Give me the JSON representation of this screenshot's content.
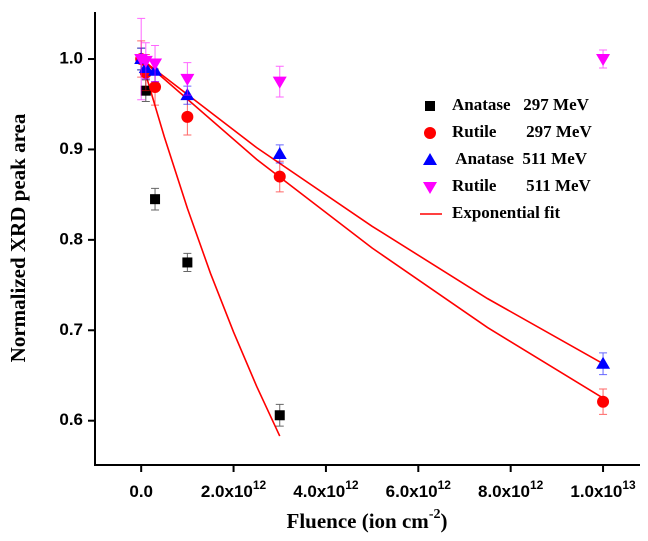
{
  "chart_data": {
    "type": "scatter",
    "x_label": {
      "text": "Fluence (ion cm",
      "superscript": "-2",
      "suffix": ")"
    },
    "y_label": "Normalized XRD peak area",
    "xlim": [
      -1000000000000.0,
      10800000000000.0
    ],
    "ylim": [
      0.551,
      1.052
    ],
    "xticks": [
      {
        "value": 0,
        "label": "0.0"
      },
      {
        "value": 2000000000000.0,
        "label": "2.0x10",
        "exponent": "12"
      },
      {
        "value": 4000000000000.0,
        "label": "4.0x10",
        "exponent": "12"
      },
      {
        "value": 6000000000000.0,
        "label": "6.0x10",
        "exponent": "12"
      },
      {
        "value": 8000000000000.0,
        "label": "8.0x10",
        "exponent": "12"
      },
      {
        "value": 10000000000000.0,
        "label": "1.0x10",
        "exponent": "13"
      }
    ],
    "yticks": [
      0.6,
      0.7,
      0.8,
      0.9,
      {
        "value": 1.0,
        "label": "1.0"
      }
    ],
    "series": [
      {
        "name": "Anatase   297 MeV",
        "color": "#000000",
        "marker": "square",
        "x": [
          0,
          100000000000.0,
          300000000000.0,
          1000000000000.0,
          3000000000000.0
        ],
        "values": [
          1.0,
          0.965,
          0.845,
          0.775,
          0.606
        ],
        "errors": [
          0.012,
          0.012,
          0.012,
          0.01,
          0.012
        ]
      },
      {
        "name": "Rutile       297 MeV",
        "color": "#ff0000",
        "marker": "circle",
        "x": [
          0,
          100000000000.0,
          300000000000.0,
          1000000000000.0,
          3000000000000.0,
          10000000000000.0
        ],
        "values": [
          1.0,
          0.985,
          0.969,
          0.936,
          0.87,
          0.621
        ],
        "errors": [
          0.02,
          0.02,
          0.02,
          0.02,
          0.017,
          0.014
        ]
      },
      {
        "name": " Anatase  511 MeV",
        "color": "#0000ff",
        "marker": "triangle-up",
        "x": [
          0,
          100000000000.0,
          300000000000.0,
          1000000000000.0,
          3000000000000.0,
          10000000000000.0
        ],
        "values": [
          1.0,
          0.99,
          0.987,
          0.96,
          0.895,
          0.663
        ],
        "errors": [
          0.012,
          0.012,
          0.012,
          0.01,
          0.01,
          0.012
        ]
      },
      {
        "name": "Rutile       511 MeV",
        "color": "#ff00ff",
        "marker": "triangle-down",
        "x": [
          0,
          100000000000.0,
          300000000000.0,
          1000000000000.0,
          3000000000000.0,
          10000000000000.0
        ],
        "values": [
          1.0,
          0.998,
          0.995,
          0.978,
          0.975,
          1.0
        ],
        "errors": [
          0.045,
          0.02,
          0.02,
          0.018,
          0.017,
          0.01
        ]
      }
    ],
    "fit": {
      "name": "Exponential fit",
      "color": "#ff0000",
      "lines": [
        {
          "x": [
            0,
            500000000000.0,
            1000000000000.0,
            1500000000000.0,
            2000000000000.0,
            2500000000000.0,
            3000000000000.0
          ],
          "values": [
            1.0,
            0.914,
            0.835,
            0.763,
            0.698,
            0.638,
            0.583
          ]
        },
        {
          "x": [
            0,
            2500000000000.0,
            5000000000000.0,
            7500000000000.0,
            10000000000000.0
          ],
          "values": [
            1.0,
            0.889,
            0.791,
            0.703,
            0.625
          ]
        },
        {
          "x": [
            0,
            2500000000000.0,
            5000000000000.0,
            7500000000000.0,
            10000000000000.0
          ],
          "values": [
            1.0,
            0.902,
            0.815,
            0.735,
            0.663
          ]
        }
      ]
    },
    "legend": "upper-right"
  }
}
